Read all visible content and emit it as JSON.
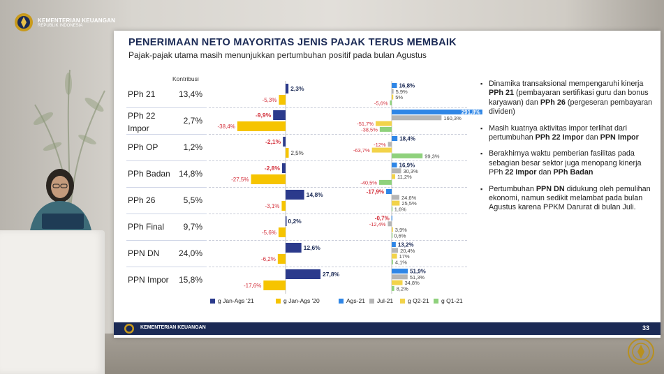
{
  "org": {
    "name": "KEMENTERIAN KEUANGAN",
    "sub": "REPUBLIK INDONESIA"
  },
  "slide": {
    "title": "PENERIMAAN NETO MAYORITAS JENIS PAJAK TERUS MEMBAIK",
    "subtitle": "Pajak-pajak utama masih menunjukkan pertumbuhan positif pada bulan Agustus",
    "kontribusi_label": "Kontribusi",
    "footer_name": "KEMENTERIAN KEUANGAN",
    "page_number": "33"
  },
  "colors": {
    "navy": "#2b3a8c",
    "yellow": "#f6c400",
    "blue": "#2f86e6",
    "gray": "#b5b5b5",
    "gold": "#f2d34a",
    "green": "#8fd17c"
  },
  "rows": [
    {
      "label": "PPh 21",
      "kontribusi": "13,4%",
      "jan21": "2,3%",
      "jan20": "-5,3%",
      "ags": "16,8%",
      "jul": "5,9%",
      "q2": "5,0%",
      "q1": "-5,6%"
    },
    {
      "label": "PPh 22 Impor",
      "kontribusi": "2,7%",
      "jan21": "-9,9%",
      "jan20": "-38,4%",
      "ags": "291,8%",
      "jul": "160,3%",
      "q2": "-51,7%",
      "q1": "-38,5%"
    },
    {
      "label": "PPh OP",
      "kontribusi": "1,2%",
      "jan21": "-2,1%",
      "jan20": "2,5%",
      "ags": "18,4%",
      "jul": "-12,0%",
      "q2": "-63,7%",
      "q1": "99,3%"
    },
    {
      "label": "PPh Badan",
      "kontribusi": "14,8%",
      "jan21": "-2,8%",
      "jan20": "-27,5%",
      "ags": "16,9%",
      "jul": "30,3%",
      "q2": "11,2%",
      "q1": "-40,5%"
    },
    {
      "label": "PPh 26",
      "kontribusi": "5,5%",
      "jan21": "14,8%",
      "jan20": "-3,1%",
      "ags": "-17,9%",
      "jul": "24,6%",
      "q2": "25,5%",
      "q1": "1,6%"
    },
    {
      "label": "PPh Final",
      "kontribusi": "9,7%",
      "jan21": "0,2%",
      "jan20": "-5,6%",
      "ags": "-0,7%",
      "jul": "-12,4%",
      "q2": "3,9%",
      "q1": "0,6%"
    },
    {
      "label": "PPN DN",
      "kontribusi": "24,0%",
      "jan21": "12,6%",
      "jan20": "-6,2%",
      "ags": "13,2%",
      "jul": "20,4%",
      "q2": "17,0%",
      "q1": "4,1%"
    },
    {
      "label": "PPN Impor",
      "kontribusi": "15,8%",
      "jan21": "27,8%",
      "jan20": "-17,6%",
      "ags": "51,9%",
      "jul": "51,3%",
      "q2": "34,8%",
      "q1": "8,2%"
    }
  ],
  "legend": {
    "jan21": "g Jan-Ags '21",
    "jan20": "g Jan-Ags '20",
    "ags": "Ags-21",
    "jul": "Jul-21",
    "q2": "g  Q2-21",
    "q1": "g  Q1-21"
  },
  "bullets": [
    {
      "text": "Dinamika transaksional mempengaruhi kinerja <b>PPh 21</b> (pembayaran sertifikasi guru dan bonus karyawan) dan <b>PPh 26</b> (pergeseran pembayaran dividen)"
    },
    {
      "text": "Masih kuatnya aktivitas impor terlihat dari pertumbuhan <b>PPh 22 Impor</b> dan <b>PPN Impor</b>"
    },
    {
      "text": "Berakhirnya waktu pemberian fasilitas pada sebagian besar sektor juga menopang kinerja PPh <b>22 Impor</b> dan <b>PPh Badan</b>"
    },
    {
      "text": "Pertumbuhan <b>PPN DN</b> didukung oleh pemulihan ekonomi, namun sedikit melambat pada bulan Agustus karena PPKM Darurat di bulan Juli."
    }
  ],
  "chart_data": [
    {
      "type": "bar",
      "title": "",
      "categories": [
        "PPh 21",
        "PPh 22 Impor",
        "PPh OP",
        "PPh Badan",
        "PPh 26",
        "PPh Final",
        "PPN DN",
        "PPN Impor"
      ],
      "series": [
        {
          "name": "g Jan-Ags '21",
          "values": [
            2.3,
            -9.9,
            -2.1,
            -2.8,
            14.8,
            0.2,
            12.6,
            27.8
          ]
        },
        {
          "name": "g Jan-Ags '20",
          "values": [
            -5.3,
            -38.4,
            2.5,
            -27.5,
            -3.1,
            -5.6,
            -6.2,
            -17.6
          ]
        }
      ]
    },
    {
      "type": "bar",
      "title": "",
      "categories": [
        "PPh 21",
        "PPh 22 Impor",
        "PPh OP",
        "PPh Badan",
        "PPh 26",
        "PPh Final",
        "PPN DN",
        "PPN Impor"
      ],
      "series": [
        {
          "name": "Ags-21",
          "values": [
            16.8,
            291.8,
            18.4,
            16.9,
            -17.9,
            -0.7,
            13.2,
            51.9
          ]
        },
        {
          "name": "Jul-21",
          "values": [
            5.9,
            160.3,
            -12.0,
            30.3,
            24.6,
            -12.4,
            20.4,
            51.3
          ]
        },
        {
          "name": "g  Q2-21",
          "values": [
            5.0,
            -51.7,
            -63.7,
            11.2,
            25.5,
            3.9,
            17.0,
            34.8
          ]
        },
        {
          "name": "g  Q1-21",
          "values": [
            -5.6,
            -38.5,
            99.3,
            -40.5,
            1.6,
            0.6,
            4.1,
            8.2
          ]
        }
      ]
    }
  ]
}
